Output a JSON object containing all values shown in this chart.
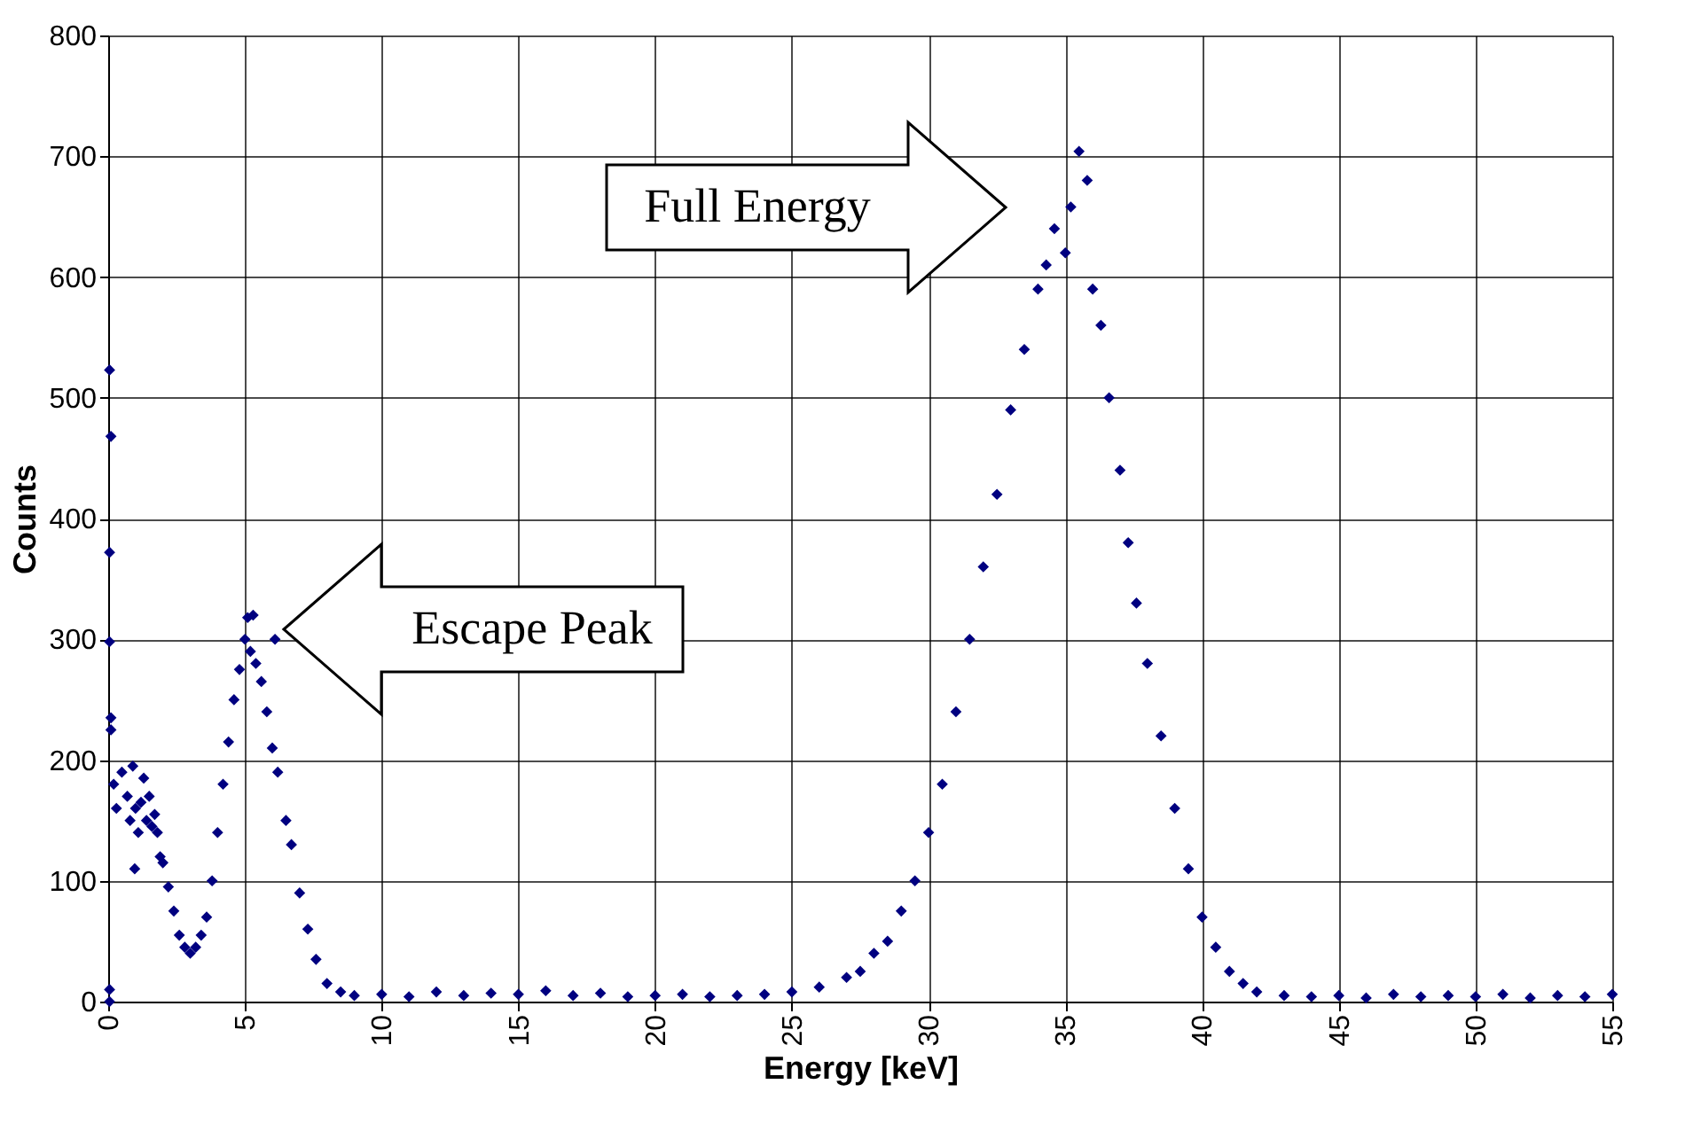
{
  "chart_data": {
    "type": "scatter",
    "xlabel": "Energy [keV]",
    "ylabel": "Counts",
    "xlim": [
      0,
      55
    ],
    "xticks": [
      0,
      5,
      10,
      15,
      20,
      25,
      30,
      35,
      40,
      45,
      50,
      55
    ],
    "ylim": [
      0,
      800
    ],
    "yticks": [
      0,
      100,
      200,
      300,
      400,
      500,
      600,
      700,
      800
    ],
    "grid": true,
    "marker": "diamond",
    "legend": false,
    "annotations": [
      "Full Energy",
      "Escape Peak"
    ],
    "series": [
      {
        "color": "#000080",
        "x": [
          0.05,
          0.1,
          0.05,
          0.05,
          0.1,
          0.1,
          0.05,
          0.05,
          0.2,
          0.3,
          0.5,
          0.7,
          0.8,
          0.9,
          0.97,
          1.0,
          1.1,
          1.2,
          1.3,
          1.4,
          1.5,
          1.6,
          1.7,
          1.8,
          1.9,
          2.0,
          2.2,
          2.4,
          2.6,
          2.8,
          3.0,
          3.2,
          3.4,
          3.6,
          3.8,
          4.0,
          4.2,
          4.4,
          4.6,
          4.8,
          5.0,
          5.1,
          5.2,
          5.3,
          5.4,
          5.6,
          5.8,
          6.0,
          6.1,
          6.2,
          6.5,
          6.7,
          7.0,
          7.3,
          7.6,
          8.0,
          8.5,
          9,
          10,
          11,
          12,
          13,
          14,
          15,
          16,
          17,
          18,
          19,
          20,
          21,
          22,
          23,
          24,
          25,
          26,
          27,
          27.5,
          28,
          28.5,
          29,
          29.5,
          30,
          30.5,
          31,
          31.5,
          32,
          32.5,
          33,
          33.5,
          34,
          34.3,
          34.6,
          35,
          35.2,
          35.5,
          35.8,
          36,
          36.3,
          36.6,
          37,
          37.3,
          37.6,
          38,
          38.5,
          39,
          39.5,
          40,
          40.5,
          41,
          41.5,
          42,
          43,
          44,
          45,
          46,
          47,
          48,
          49,
          50,
          51,
          52,
          53,
          54,
          55
        ],
        "values": [
          523,
          468,
          372,
          298,
          235,
          225,
          10,
          0,
          180,
          160,
          190,
          170,
          150,
          195,
          110,
          160,
          140,
          165,
          185,
          150,
          170,
          145,
          155,
          140,
          120,
          115,
          95,
          75,
          55,
          45,
          40,
          45,
          55,
          70,
          100,
          140,
          180,
          215,
          250,
          275,
          300,
          318,
          290,
          320,
          280,
          265,
          240,
          210,
          300,
          190,
          150,
          130,
          90,
          60,
          35,
          15,
          8,
          5,
          6,
          4,
          8,
          5,
          7,
          6,
          9,
          5,
          7,
          4,
          5,
          6,
          4,
          5,
          6,
          8,
          12,
          20,
          25,
          40,
          50,
          75,
          100,
          140,
          180,
          240,
          300,
          360,
          420,
          490,
          540,
          590,
          610,
          640,
          620,
          658,
          704,
          680,
          590,
          560,
          500,
          440,
          380,
          330,
          280,
          220,
          160,
          110,
          70,
          45,
          25,
          15,
          8,
          5,
          4,
          5,
          3,
          6,
          4,
          5,
          4,
          6,
          3,
          5,
          4,
          6
        ]
      }
    ]
  }
}
